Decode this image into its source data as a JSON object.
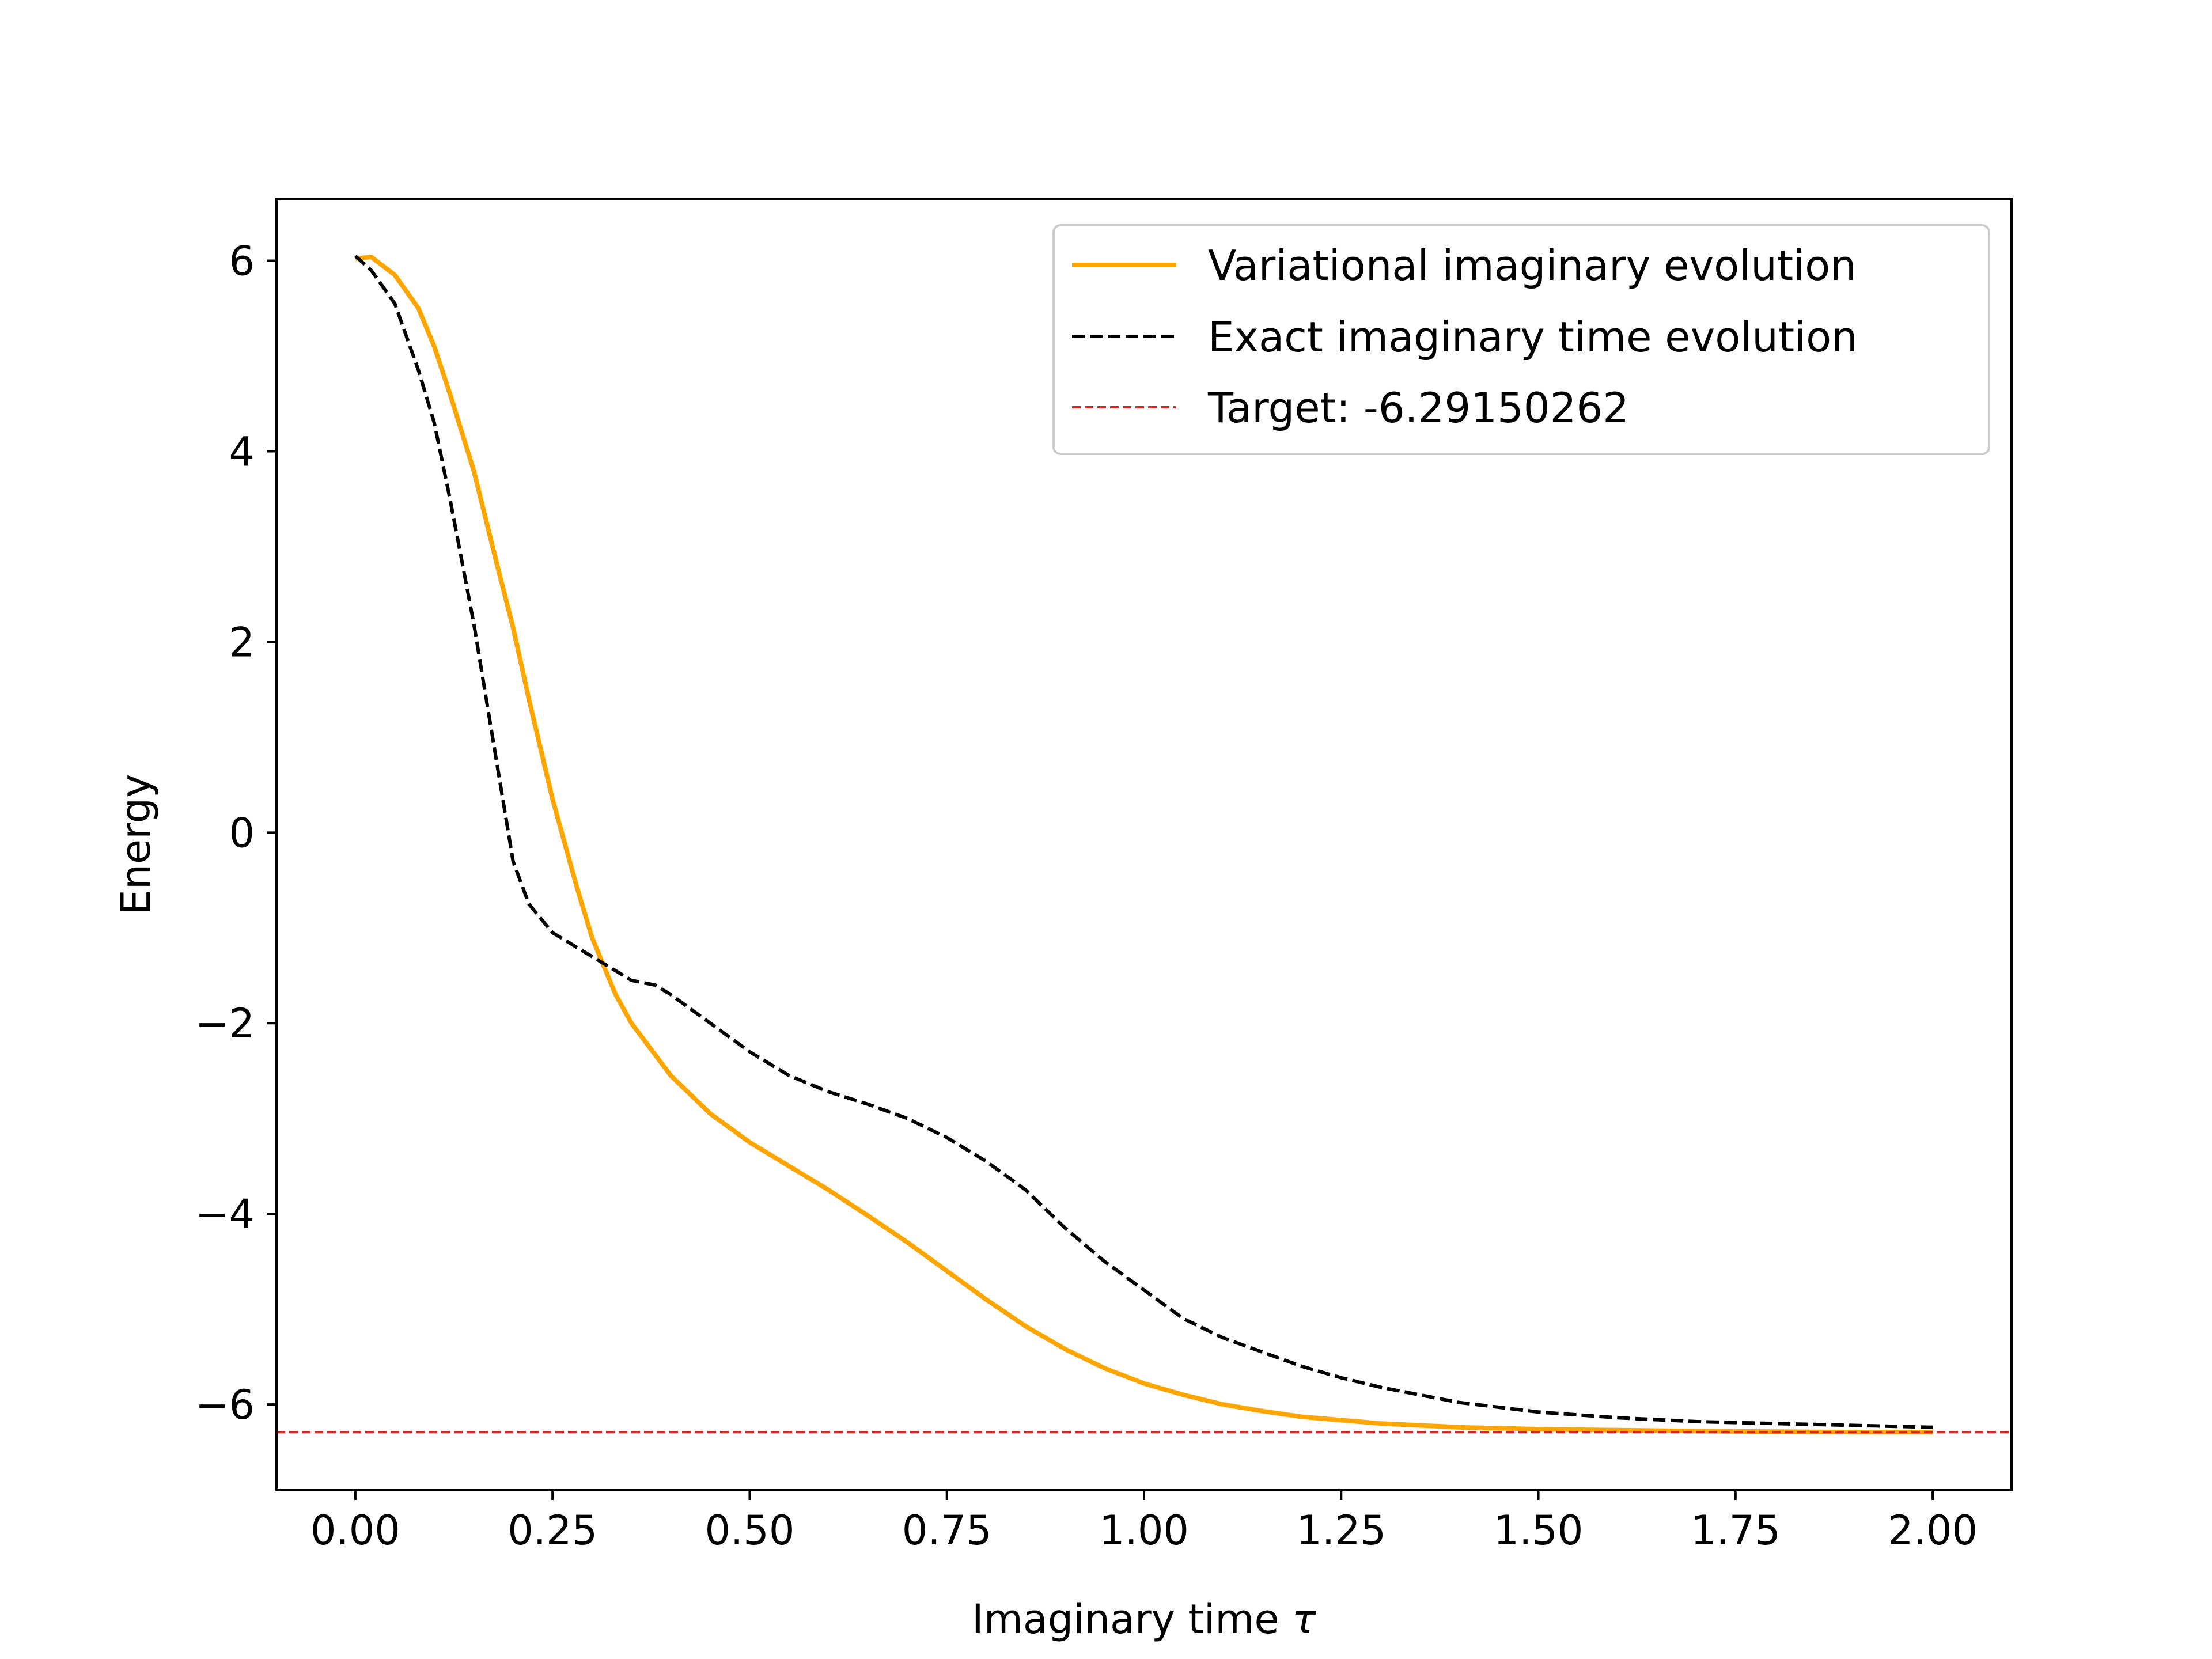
{
  "chart_data": {
    "type": "line",
    "title": "",
    "xlabel": "Imaginary time",
    "xlabel_symbol": "τ",
    "ylabel": "Energy",
    "xlim": [
      -0.1,
      2.1
    ],
    "ylim": [
      -6.9,
      6.65
    ],
    "x_ticks": [
      0.0,
      0.25,
      0.5,
      0.75,
      1.0,
      1.25,
      1.5,
      1.75,
      2.0
    ],
    "x_tick_labels": [
      "0.00",
      "0.25",
      "0.50",
      "0.75",
      "1.00",
      "1.25",
      "1.50",
      "1.75",
      "2.00"
    ],
    "y_ticks": [
      -6,
      -4,
      -2,
      0,
      2,
      4,
      6
    ],
    "y_tick_labels": [
      "−6",
      "−4",
      "−2",
      "0",
      "2",
      "4",
      "6"
    ],
    "grid": false,
    "legend_position": "top-right",
    "series": [
      {
        "name": "Variational imaginary evolution",
        "color": "#ffa500",
        "style": "solid",
        "x": [
          0.0,
          0.02,
          0.05,
          0.08,
          0.1,
          0.12,
          0.15,
          0.18,
          0.2,
          0.22,
          0.25,
          0.28,
          0.3,
          0.33,
          0.35,
          0.4,
          0.45,
          0.5,
          0.55,
          0.6,
          0.65,
          0.7,
          0.75,
          0.8,
          0.85,
          0.9,
          0.95,
          1.0,
          1.05,
          1.1,
          1.15,
          1.2,
          1.3,
          1.4,
          1.5,
          1.6,
          1.7,
          1.8,
          1.9,
          2.0
        ],
        "y": [
          6.02,
          6.04,
          5.85,
          5.5,
          5.1,
          4.6,
          3.8,
          2.8,
          2.15,
          1.4,
          0.35,
          -0.55,
          -1.1,
          -1.7,
          -2.0,
          -2.55,
          -2.95,
          -3.25,
          -3.5,
          -3.75,
          -4.02,
          -4.3,
          -4.6,
          -4.9,
          -5.18,
          -5.42,
          -5.62,
          -5.78,
          -5.9,
          -6.0,
          -6.07,
          -6.13,
          -6.2,
          -6.24,
          -6.26,
          -6.27,
          -6.28,
          -6.285,
          -6.29,
          -6.29
        ]
      },
      {
        "name": "Exact imaginary time evolution",
        "color": "#000000",
        "style": "dashed",
        "x": [
          0.0,
          0.02,
          0.05,
          0.08,
          0.1,
          0.12,
          0.15,
          0.18,
          0.2,
          0.22,
          0.25,
          0.28,
          0.3,
          0.33,
          0.35,
          0.38,
          0.4,
          0.45,
          0.5,
          0.55,
          0.6,
          0.65,
          0.7,
          0.75,
          0.8,
          0.85,
          0.9,
          0.95,
          1.0,
          1.05,
          1.1,
          1.15,
          1.2,
          1.25,
          1.3,
          1.4,
          1.5,
          1.6,
          1.7,
          1.8,
          1.9,
          1.95,
          2.0
        ],
        "y": [
          6.05,
          5.9,
          5.55,
          4.85,
          4.3,
          3.5,
          2.2,
          0.7,
          -0.3,
          -0.75,
          -1.05,
          -1.2,
          -1.3,
          -1.45,
          -1.55,
          -1.6,
          -1.7,
          -2.0,
          -2.3,
          -2.55,
          -2.72,
          -2.85,
          -3.0,
          -3.2,
          -3.45,
          -3.75,
          -4.15,
          -4.5,
          -4.8,
          -5.1,
          -5.3,
          -5.45,
          -5.6,
          -5.72,
          -5.82,
          -5.98,
          -6.08,
          -6.14,
          -6.18,
          -6.2,
          -6.22,
          -6.23,
          -6.24
        ]
      },
      {
        "name": "Target: -6.29150262",
        "color": "#d62728",
        "style": "dashed",
        "hline": -6.29150262
      }
    ]
  }
}
